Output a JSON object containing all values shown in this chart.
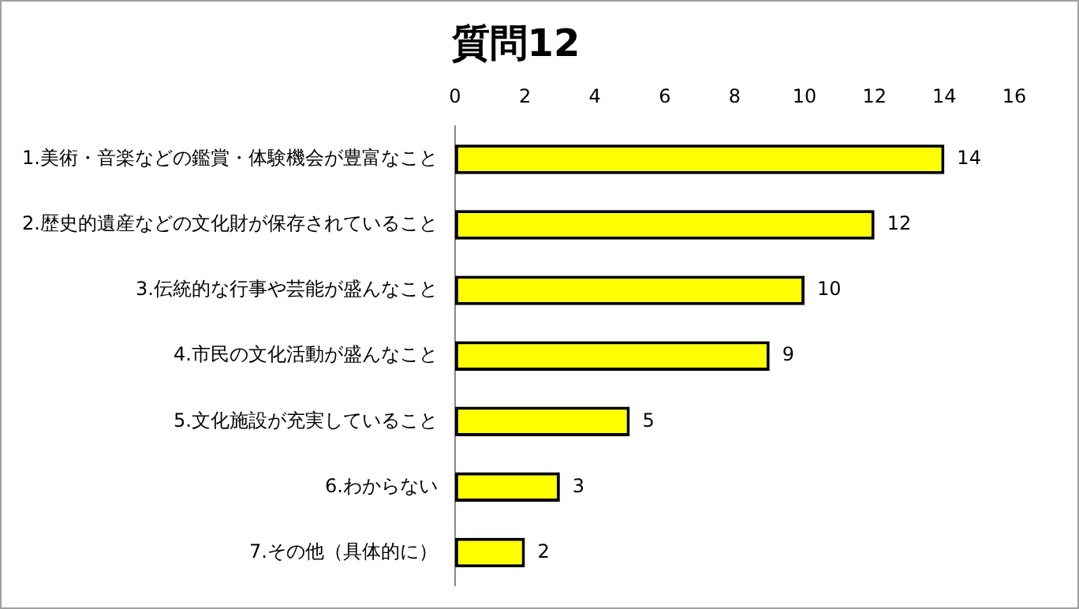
{
  "chart_data": {
    "type": "bar",
    "orientation": "horizontal",
    "title": "質問12",
    "categories": [
      "1.美術・音楽などの鑑賞・体験機会が豊富なこと",
      "2.歴史的遺産などの文化財が保存されていること",
      "3.伝統的な行事や芸能が盛んなこと",
      "4.市民の文化活動が盛んなこと",
      "5.文化施設が充実していること",
      "6.わからない",
      "7.その他（具体的に）"
    ],
    "values": [
      14,
      12,
      10,
      9,
      5,
      3,
      2
    ],
    "color": "#ffff00",
    "xlim": [
      0,
      16
    ],
    "xticks": [
      0,
      2,
      4,
      6,
      8,
      10,
      12,
      14,
      16
    ],
    "grid": false,
    "legend": false,
    "data_labels": true
  }
}
